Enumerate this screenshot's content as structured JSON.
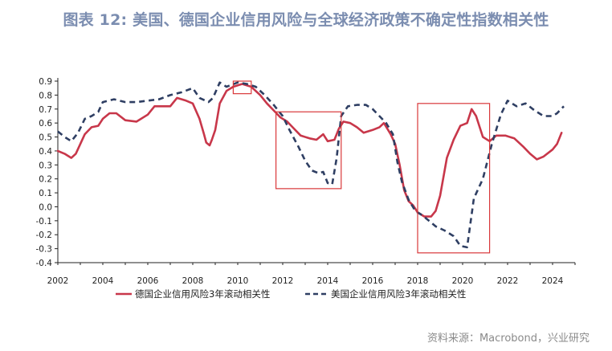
{
  "title": "图表 12: 美国、德国企业信用风险与全球经济政策不确定性指数相关性",
  "source": "资料来源：Macrobond，兴业研究",
  "colors": {
    "germany": "#c8374a",
    "us": "#2f3f63",
    "highlight": "#d9383a",
    "axis": "#222222"
  },
  "chart_data": {
    "type": "line",
    "xlabel": "",
    "ylabel": "",
    "xlim": [
      2002,
      2025
    ],
    "ylim": [
      -0.4,
      0.9
    ],
    "x_ticks": [
      "2002",
      "2004",
      "2006",
      "2008",
      "2010",
      "2012",
      "2014",
      "2016",
      "2018",
      "2020",
      "2022",
      "2024"
    ],
    "y_ticks": [
      "0.9",
      "0.8",
      "0.7",
      "0.6",
      "0.5",
      "0.4",
      "0.3",
      "0.2",
      "0.1",
      "0.0",
      "-0.1",
      "-0.2",
      "-0.3",
      "-0.4"
    ],
    "legend_position": "bottom-center",
    "series": [
      {
        "name": "德国企业信用风险3年滚动相关性",
        "style": "solid",
        "points": [
          [
            2002.0,
            0.4
          ],
          [
            2002.3,
            0.38
          ],
          [
            2002.6,
            0.35
          ],
          [
            2002.8,
            0.38
          ],
          [
            2003.2,
            0.52
          ],
          [
            2003.5,
            0.57
          ],
          [
            2003.8,
            0.58
          ],
          [
            2004.0,
            0.63
          ],
          [
            2004.3,
            0.67
          ],
          [
            2004.6,
            0.67
          ],
          [
            2005.0,
            0.62
          ],
          [
            2005.5,
            0.61
          ],
          [
            2006.0,
            0.66
          ],
          [
            2006.3,
            0.72
          ],
          [
            2006.7,
            0.72
          ],
          [
            2007.0,
            0.72
          ],
          [
            2007.3,
            0.78
          ],
          [
            2007.7,
            0.76
          ],
          [
            2008.0,
            0.74
          ],
          [
            2008.3,
            0.63
          ],
          [
            2008.5,
            0.52
          ],
          [
            2008.6,
            0.46
          ],
          [
            2008.75,
            0.44
          ],
          [
            2008.85,
            0.48
          ],
          [
            2009.0,
            0.55
          ],
          [
            2009.2,
            0.74
          ],
          [
            2009.5,
            0.83
          ],
          [
            2009.8,
            0.86
          ],
          [
            2010.2,
            0.88
          ],
          [
            2010.6,
            0.86
          ],
          [
            2011.0,
            0.8
          ],
          [
            2011.3,
            0.74
          ],
          [
            2011.6,
            0.69
          ],
          [
            2011.9,
            0.64
          ],
          [
            2012.2,
            0.61
          ],
          [
            2012.5,
            0.56
          ],
          [
            2012.8,
            0.51
          ],
          [
            2013.2,
            0.49
          ],
          [
            2013.5,
            0.48
          ],
          [
            2013.8,
            0.52
          ],
          [
            2014.0,
            0.47
          ],
          [
            2014.3,
            0.48
          ],
          [
            2014.5,
            0.56
          ],
          [
            2014.7,
            0.61
          ],
          [
            2015.0,
            0.6
          ],
          [
            2015.3,
            0.57
          ],
          [
            2015.6,
            0.53
          ],
          [
            2016.0,
            0.55
          ],
          [
            2016.3,
            0.57
          ],
          [
            2016.5,
            0.6
          ],
          [
            2016.8,
            0.52
          ],
          [
            2017.0,
            0.45
          ],
          [
            2017.2,
            0.3
          ],
          [
            2017.4,
            0.12
          ],
          [
            2017.6,
            0.04
          ],
          [
            2017.8,
            0.01
          ],
          [
            2018.0,
            -0.04
          ],
          [
            2018.3,
            -0.07
          ],
          [
            2018.6,
            -0.07
          ],
          [
            2018.8,
            -0.03
          ],
          [
            2019.0,
            0.08
          ],
          [
            2019.3,
            0.35
          ],
          [
            2019.6,
            0.48
          ],
          [
            2019.9,
            0.58
          ],
          [
            2020.2,
            0.6
          ],
          [
            2020.4,
            0.7
          ],
          [
            2020.6,
            0.65
          ],
          [
            2020.9,
            0.5
          ],
          [
            2021.2,
            0.47
          ],
          [
            2021.5,
            0.51
          ],
          [
            2021.9,
            0.51
          ],
          [
            2022.3,
            0.49
          ],
          [
            2022.7,
            0.43
          ],
          [
            2023.0,
            0.38
          ],
          [
            2023.3,
            0.34
          ],
          [
            2023.6,
            0.36
          ],
          [
            2024.0,
            0.41
          ],
          [
            2024.2,
            0.45
          ],
          [
            2024.4,
            0.53
          ]
        ]
      },
      {
        "name": "美国企业信用风险3年滚动相关性",
        "style": "dashed",
        "points": [
          [
            2002.0,
            0.54
          ],
          [
            2002.3,
            0.5
          ],
          [
            2002.6,
            0.47
          ],
          [
            2002.9,
            0.53
          ],
          [
            2003.2,
            0.63
          ],
          [
            2003.5,
            0.65
          ],
          [
            2003.8,
            0.68
          ],
          [
            2004.0,
            0.75
          ],
          [
            2004.5,
            0.77
          ],
          [
            2005.0,
            0.75
          ],
          [
            2005.5,
            0.75
          ],
          [
            2006.0,
            0.76
          ],
          [
            2006.5,
            0.77
          ],
          [
            2007.0,
            0.8
          ],
          [
            2007.5,
            0.82
          ],
          [
            2008.0,
            0.85
          ],
          [
            2008.3,
            0.78
          ],
          [
            2008.7,
            0.75
          ],
          [
            2008.9,
            0.78
          ],
          [
            2009.2,
            0.89
          ],
          [
            2009.5,
            0.86
          ],
          [
            2010.0,
            0.89
          ],
          [
            2010.4,
            0.88
          ],
          [
            2010.8,
            0.86
          ],
          [
            2011.2,
            0.8
          ],
          [
            2011.6,
            0.73
          ],
          [
            2012.0,
            0.65
          ],
          [
            2012.3,
            0.55
          ],
          [
            2012.7,
            0.43
          ],
          [
            2013.0,
            0.33
          ],
          [
            2013.3,
            0.26
          ],
          [
            2013.6,
            0.24
          ],
          [
            2013.8,
            0.25
          ],
          [
            2014.0,
            0.17
          ],
          [
            2014.2,
            0.16
          ],
          [
            2014.4,
            0.35
          ],
          [
            2014.6,
            0.65
          ],
          [
            2014.9,
            0.72
          ],
          [
            2015.3,
            0.73
          ],
          [
            2015.7,
            0.73
          ],
          [
            2016.0,
            0.7
          ],
          [
            2016.3,
            0.65
          ],
          [
            2016.6,
            0.6
          ],
          [
            2016.9,
            0.52
          ],
          [
            2017.1,
            0.32
          ],
          [
            2017.3,
            0.18
          ],
          [
            2017.6,
            0.05
          ],
          [
            2017.9,
            -0.03
          ],
          [
            2018.2,
            -0.06
          ],
          [
            2018.5,
            -0.1
          ],
          [
            2018.8,
            -0.14
          ],
          [
            2019.2,
            -0.17
          ],
          [
            2019.6,
            -0.21
          ],
          [
            2019.9,
            -0.28
          ],
          [
            2020.2,
            -0.29
          ],
          [
            2020.5,
            0.06
          ],
          [
            2020.9,
            0.2
          ],
          [
            2021.3,
            0.45
          ],
          [
            2021.7,
            0.66
          ],
          [
            2022.0,
            0.76
          ],
          [
            2022.4,
            0.72
          ],
          [
            2022.8,
            0.74
          ],
          [
            2023.2,
            0.69
          ],
          [
            2023.6,
            0.65
          ],
          [
            2024.0,
            0.65
          ],
          [
            2024.2,
            0.67
          ],
          [
            2024.5,
            0.72
          ]
        ]
      }
    ],
    "highlight_boxes": [
      {
        "x_range": [
          2009.8,
          2010.6
        ],
        "y_range": [
          0.81,
          0.9
        ]
      },
      {
        "x_range": [
          2011.7,
          2014.6
        ],
        "y_range": [
          0.13,
          0.68
        ]
      },
      {
        "x_range": [
          2018.0,
          2021.2
        ],
        "y_range": [
          -0.33,
          0.74
        ]
      }
    ]
  }
}
